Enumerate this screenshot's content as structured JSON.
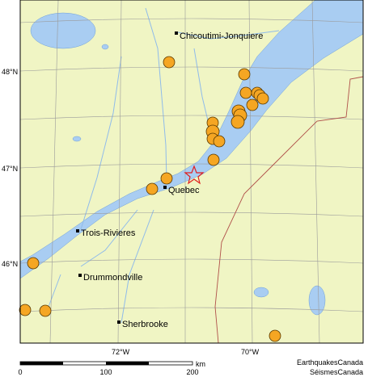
{
  "cities": [
    "Chicoutimi-Jonquiere",
    "Quebec",
    "Trois-Rivieres",
    "Drummondville",
    "Sherbrooke"
  ],
  "latitude_labels": [
    "48°N",
    "47°N",
    "46°N"
  ],
  "longitude_labels": [
    "72°W",
    "70°W"
  ],
  "scale": {
    "ticks": [
      "0",
      "100",
      "200"
    ],
    "unit": "km"
  },
  "credits": [
    "EarthquakesCanada",
    "SéismesCanada"
  ]
}
